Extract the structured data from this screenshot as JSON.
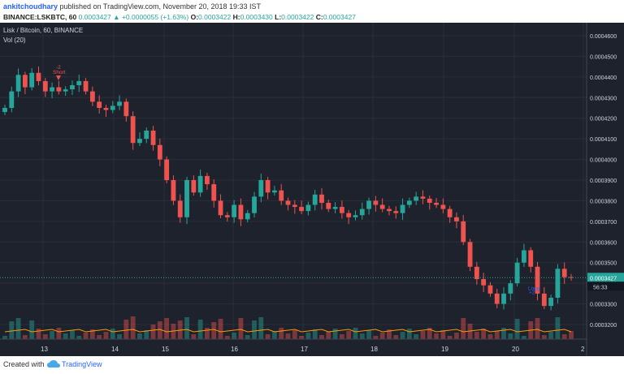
{
  "header": {
    "author": "ankitchoudhary",
    "published_text": "published on TradingView.com, November 20, 2018 19:33 IST",
    "symbol": "BINANCE:LSKBTC, 60",
    "change_value": "+0.0000055",
    "change_pct": "(+1.63%)",
    "o_label": "O:",
    "o_value": "0.0003422",
    "h_label": "H:",
    "h_value": "0.0003430",
    "l_label": "L:",
    "l_value": "0.0003422",
    "c_label": "C:",
    "c_value": "0.0003427",
    "price_lead": "0.0003427",
    "up_arrow": "▲"
  },
  "chart": {
    "title": "Lisk / Bitcoin, 60, BINANCE",
    "volume_label": "Vol (20)",
    "last_price": "0.0003427",
    "countdown": "56:33",
    "annotation_short": "-2",
    "annotation_short_text": "Short",
    "annotation_long": "+2",
    "annotation_long_text": "Long",
    "colors": {
      "up": "#26a69a",
      "down": "#ef5350",
      "bg": "#1e222d",
      "grid": "#2a2e39"
    }
  },
  "chart_data": {
    "type": "candlestick",
    "y_ticks": [
      "0.0004600",
      "0.0004500",
      "0.0004400",
      "0.0004300",
      "0.0004200",
      "0.0004100",
      "0.0004000",
      "0.0003900",
      "0.0003800",
      "0.0003700",
      "0.0003600",
      "0.0003500",
      "0.0003400",
      "0.0003300",
      "0.0003200"
    ],
    "x_ticks": [
      "13",
      "14",
      "15",
      "16",
      "17",
      "18",
      "19",
      "20",
      "2"
    ],
    "close_path": [
      4250,
      4330,
      4410,
      4350,
      4420,
      4380,
      4330,
      4350,
      4330,
      4340,
      4360,
      4380,
      4330,
      4280,
      4250,
      4240,
      4260,
      4280,
      4210,
      4080,
      4100,
      4140,
      4070,
      4000,
      3900,
      3800,
      3720,
      3900,
      3840,
      3920,
      3880,
      3800,
      3730,
      3720,
      3780,
      3710,
      3740,
      3820,
      3900,
      3840,
      3850,
      3800,
      3780,
      3770,
      3750,
      3780,
      3830,
      3790,
      3760,
      3770,
      3740,
      3720,
      3730,
      3760,
      3800,
      3780,
      3760,
      3750,
      3740,
      3780,
      3800,
      3820,
      3810,
      3790,
      3780,
      3760,
      3720,
      3700,
      3600,
      3480,
      3420,
      3390,
      3350,
      3300,
      3350,
      3400,
      3500,
      3560,
      3480,
      3350,
      3290,
      3330,
      3470,
      3430,
      3427
    ],
    "volume_path": [
      1,
      1,
      1,
      1,
      1,
      1,
      1,
      1,
      1,
      1,
      1,
      1,
      1,
      1,
      1,
      1,
      1,
      1,
      1,
      1,
      1,
      1,
      1,
      1,
      1,
      1,
      1,
      1,
      1,
      1,
      1,
      1,
      1,
      1,
      1,
      1,
      1,
      1,
      1,
      1,
      1,
      1,
      1,
      1,
      1,
      1,
      1,
      1,
      1,
      1,
      1,
      1,
      1,
      1,
      1,
      1,
      1,
      1,
      1,
      1,
      1,
      1,
      1,
      1,
      1,
      1,
      1,
      1,
      1,
      1,
      1,
      1,
      1,
      1,
      1,
      1,
      1,
      1,
      1,
      1,
      1,
      1,
      1,
      1,
      1
    ]
  },
  "footer": {
    "created_with": "Created with",
    "brand": "TradingView"
  }
}
